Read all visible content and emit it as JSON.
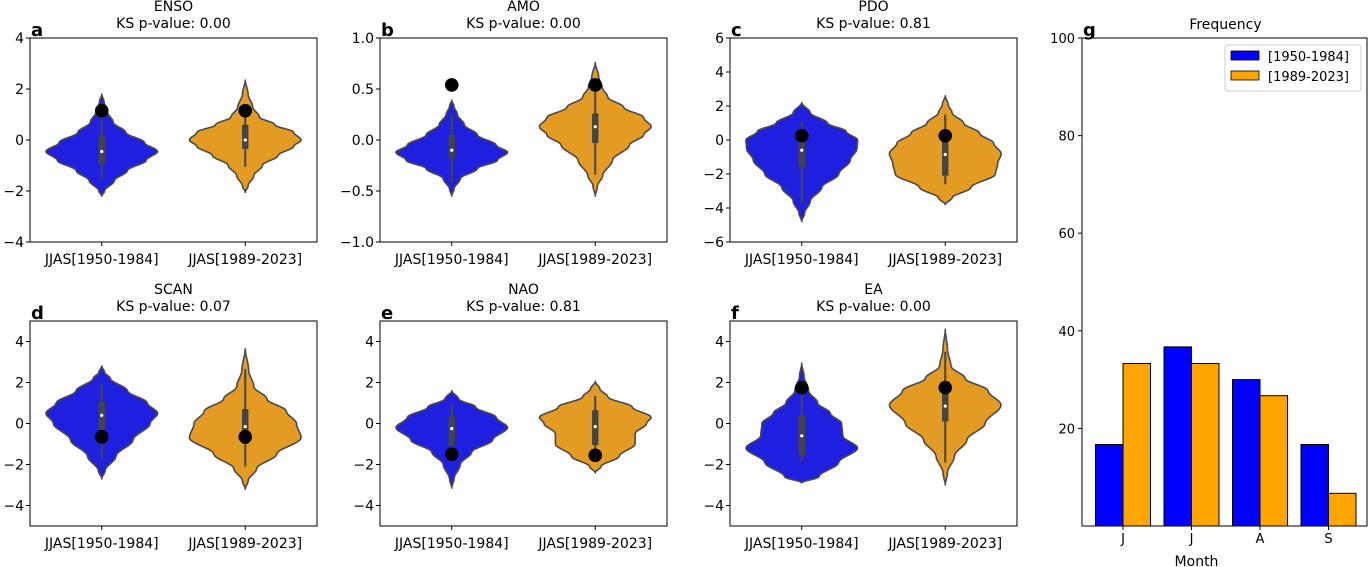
{
  "chart_data": [
    {
      "type": "violin",
      "panel": "a",
      "title": "ENSO",
      "subtitle": "KS p-value: 0.00",
      "ylim": [
        -4,
        4
      ],
      "yticks": [
        -4,
        -2,
        0,
        2,
        4
      ],
      "ytick_labels": [
        "−4",
        "−2",
        "0",
        "2",
        "4"
      ],
      "categories": [
        "JJAS[1950-1984]",
        "JJAS[1989-2023]"
      ],
      "series": [
        {
          "name": "JJAS[1950-1984]",
          "color": "#1f1fe0",
          "min": -2.2,
          "max": 1.8,
          "mode": -0.45,
          "median": -0.45,
          "q1": -0.95,
          "q3": 0.15,
          "whisker_low": -1.55,
          "whisker_high": 1.15,
          "marker": 1.15,
          "profile": [
            [
              -2.2,
              0
            ],
            [
              -2.0,
              0.05
            ],
            [
              -1.6,
              0.22
            ],
            [
              -1.2,
              0.45
            ],
            [
              -0.8,
              0.78
            ],
            [
              -0.45,
              0.98
            ],
            [
              -0.1,
              0.75
            ],
            [
              0.3,
              0.42
            ],
            [
              0.7,
              0.2
            ],
            [
              1.1,
              0.1
            ],
            [
              1.5,
              0.04
            ],
            [
              1.8,
              0
            ]
          ]
        },
        {
          "name": "JJAS[1989-2023]",
          "color": "#e39b23",
          "min": -2.05,
          "max": 2.35,
          "mode": 0.0,
          "median": 0.0,
          "q1": -0.35,
          "q3": 0.6,
          "whisker_low": -1.05,
          "whisker_high": 1.15,
          "marker": 1.15,
          "profile": [
            [
              -2.05,
              0
            ],
            [
              -1.8,
              0.05
            ],
            [
              -1.4,
              0.15
            ],
            [
              -1.0,
              0.3
            ],
            [
              -0.6,
              0.58
            ],
            [
              -0.25,
              0.85
            ],
            [
              0.0,
              0.98
            ],
            [
              0.3,
              0.85
            ],
            [
              0.6,
              0.52
            ],
            [
              0.9,
              0.25
            ],
            [
              1.3,
              0.13
            ],
            [
              1.8,
              0.05
            ],
            [
              2.35,
              0
            ]
          ]
        }
      ]
    },
    {
      "type": "violin",
      "panel": "b",
      "title": "AMO",
      "subtitle": "KS p-value: 0.00",
      "ylim": [
        -1.0,
        1.0
      ],
      "yticks": [
        -1.0,
        -0.5,
        0.0,
        0.5,
        1.0
      ],
      "ytick_labels": [
        "−1.0",
        "−0.5",
        "0.0",
        "0.5",
        "1.0"
      ],
      "categories": [
        "JJAS[1950-1984]",
        "JJAS[1989-2023]"
      ],
      "series": [
        {
          "name": "JJAS[1950-1984]",
          "color": "#1f1fe0",
          "min": -0.55,
          "max": 0.39,
          "mode": -0.12,
          "median": -0.1,
          "q1": -0.18,
          "q3": 0.05,
          "whisker_low": -0.42,
          "whisker_high": 0.25,
          "marker": 0.54,
          "profile": [
            [
              -0.55,
              0
            ],
            [
              -0.48,
              0.04
            ],
            [
              -0.38,
              0.15
            ],
            [
              -0.28,
              0.45
            ],
            [
              -0.2,
              0.8
            ],
            [
              -0.12,
              0.98
            ],
            [
              -0.05,
              0.78
            ],
            [
              0.05,
              0.45
            ],
            [
              0.15,
              0.22
            ],
            [
              0.25,
              0.1
            ],
            [
              0.33,
              0.04
            ],
            [
              0.39,
              0
            ]
          ]
        },
        {
          "name": "JJAS[1989-2023]",
          "color": "#e39b23",
          "min": -0.55,
          "max": 0.76,
          "mode": 0.13,
          "median": 0.13,
          "q1": -0.03,
          "q3": 0.26,
          "whisker_low": -0.34,
          "whisker_high": 0.52,
          "marker": 0.54,
          "profile": [
            [
              -0.55,
              0
            ],
            [
              -0.45,
              0.04
            ],
            [
              -0.35,
              0.13
            ],
            [
              -0.2,
              0.3
            ],
            [
              -0.05,
              0.6
            ],
            [
              0.05,
              0.85
            ],
            [
              0.13,
              0.98
            ],
            [
              0.22,
              0.85
            ],
            [
              0.32,
              0.5
            ],
            [
              0.42,
              0.22
            ],
            [
              0.52,
              0.12
            ],
            [
              0.62,
              0.06
            ],
            [
              0.76,
              0
            ]
          ]
        }
      ]
    },
    {
      "type": "violin",
      "panel": "c",
      "title": "PDO",
      "subtitle": "KS p-value: 0.81",
      "ylim": [
        -6,
        6
      ],
      "yticks": [
        -6,
        -4,
        -2,
        0,
        2,
        4,
        6
      ],
      "ytick_labels": [
        "−6",
        "−4",
        "−2",
        "0",
        "2",
        "4",
        "6"
      ],
      "categories": [
        "JJAS[1950-1984]",
        "JJAS[1989-2023]"
      ],
      "series": [
        {
          "name": "JJAS[1950-1984]",
          "color": "#1f1fe0",
          "min": -4.8,
          "max": 2.2,
          "mode": -0.1,
          "median": -0.6,
          "q1": -1.6,
          "q3": 0.0,
          "whisker_low": -3.7,
          "whisker_high": 1.1,
          "marker": 0.25,
          "profile": [
            [
              -4.8,
              0
            ],
            [
              -4.3,
              0.05
            ],
            [
              -3.6,
              0.15
            ],
            [
              -2.8,
              0.35
            ],
            [
              -2.0,
              0.65
            ],
            [
              -1.2,
              0.85
            ],
            [
              -0.5,
              0.97
            ],
            [
              0.0,
              0.98
            ],
            [
              0.5,
              0.78
            ],
            [
              1.0,
              0.45
            ],
            [
              1.6,
              0.15
            ],
            [
              2.2,
              0
            ]
          ]
        },
        {
          "name": "JJAS[1989-2023]",
          "color": "#e39b23",
          "min": -3.8,
          "max": 2.6,
          "mode": -0.8,
          "median": -0.85,
          "q1": -2.1,
          "q3": 0.2,
          "whisker_low": -2.6,
          "whisker_high": 1.5,
          "marker": 0.25,
          "profile": [
            [
              -3.8,
              0
            ],
            [
              -3.4,
              0.12
            ],
            [
              -2.8,
              0.45
            ],
            [
              -2.0,
              0.88
            ],
            [
              -1.4,
              0.92
            ],
            [
              -0.8,
              0.98
            ],
            [
              -0.2,
              0.85
            ],
            [
              0.4,
              0.6
            ],
            [
              1.0,
              0.32
            ],
            [
              1.6,
              0.12
            ],
            [
              2.1,
              0.05
            ],
            [
              2.6,
              0
            ]
          ]
        }
      ]
    },
    {
      "type": "violin",
      "panel": "d",
      "title": "SCAN",
      "subtitle": "KS p-value: 0.07",
      "ylim": [
        -5,
        5
      ],
      "yticks": [
        -4,
        -2,
        0,
        2,
        4
      ],
      "ytick_labels": [
        "−4",
        "−2",
        "0",
        "2",
        "4"
      ],
      "categories": [
        "JJAS[1950-1984]",
        "JJAS[1989-2023]"
      ],
      "series": [
        {
          "name": "JJAS[1950-1984]",
          "color": "#1f1fe0",
          "min": -2.7,
          "max": 2.8,
          "mode": 0.5,
          "median": 0.4,
          "q1": -0.3,
          "q3": 1.05,
          "whisker_low": -1.8,
          "whisker_high": 1.9,
          "marker": -0.65,
          "profile": [
            [
              -2.7,
              0
            ],
            [
              -2.3,
              0.06
            ],
            [
              -1.6,
              0.25
            ],
            [
              -0.8,
              0.55
            ],
            [
              0.0,
              0.85
            ],
            [
              0.5,
              0.98
            ],
            [
              1.0,
              0.8
            ],
            [
              1.6,
              0.45
            ],
            [
              2.2,
              0.15
            ],
            [
              2.5,
              0.05
            ],
            [
              2.8,
              0
            ]
          ]
        },
        {
          "name": "JJAS[1989-2023]",
          "color": "#e39b23",
          "min": -3.2,
          "max": 3.65,
          "mode": -0.6,
          "median": -0.15,
          "q1": -1.0,
          "q3": 0.7,
          "whisker_low": -2.1,
          "whisker_high": 2.65,
          "marker": -0.65,
          "profile": [
            [
              -3.2,
              0
            ],
            [
              -2.8,
              0.05
            ],
            [
              -2.2,
              0.2
            ],
            [
              -1.5,
              0.55
            ],
            [
              -0.7,
              0.98
            ],
            [
              0.0,
              0.9
            ],
            [
              0.6,
              0.72
            ],
            [
              1.2,
              0.38
            ],
            [
              1.8,
              0.15
            ],
            [
              2.6,
              0.06
            ],
            [
              3.65,
              0
            ]
          ]
        }
      ]
    },
    {
      "type": "violin",
      "panel": "e",
      "title": "NAO",
      "subtitle": "KS p-value: 0.81",
      "ylim": [
        -5,
        5
      ],
      "yticks": [
        -4,
        -2,
        0,
        2,
        4
      ],
      "ytick_labels": [
        "−4",
        "−2",
        "0",
        "2",
        "4"
      ],
      "categories": [
        "JJAS[1950-1984]",
        "JJAS[1989-2023]"
      ],
      "series": [
        {
          "name": "JJAS[1950-1984]",
          "color": "#1f1fe0",
          "min": -3.15,
          "max": 1.6,
          "mode": -0.2,
          "median": -0.25,
          "q1": -1.1,
          "q3": 0.35,
          "whisker_low": -1.5,
          "whisker_high": 0.95,
          "marker": -1.5,
          "profile": [
            [
              -3.15,
              0
            ],
            [
              -2.7,
              0.04
            ],
            [
              -2.0,
              0.15
            ],
            [
              -1.4,
              0.35
            ],
            [
              -0.8,
              0.72
            ],
            [
              -0.2,
              0.98
            ],
            [
              0.3,
              0.78
            ],
            [
              0.8,
              0.42
            ],
            [
              1.2,
              0.12
            ],
            [
              1.6,
              0
            ]
          ]
        },
        {
          "name": "JJAS[1989-2023]",
          "color": "#e39b23",
          "min": -2.4,
          "max": 2.05,
          "mode": 0.3,
          "median": -0.15,
          "q1": -1.05,
          "q3": 0.65,
          "whisker_low": -1.55,
          "whisker_high": 1.35,
          "marker": -1.55,
          "profile": [
            [
              -2.4,
              0
            ],
            [
              -2.1,
              0.1
            ],
            [
              -1.6,
              0.42
            ],
            [
              -1.0,
              0.7
            ],
            [
              -0.5,
              0.7
            ],
            [
              0.0,
              0.9
            ],
            [
              0.3,
              0.98
            ],
            [
              0.8,
              0.65
            ],
            [
              1.3,
              0.22
            ],
            [
              1.7,
              0.08
            ],
            [
              2.05,
              0
            ]
          ]
        }
      ]
    },
    {
      "type": "violin",
      "panel": "f",
      "title": "EA",
      "subtitle": "KS p-value: 0.00",
      "ylim": [
        -5,
        5
      ],
      "yticks": [
        -4,
        -2,
        0,
        2,
        4
      ],
      "ytick_labels": [
        "−4",
        "−2",
        "0",
        "2",
        "4"
      ],
      "categories": [
        "JJAS[1950-1984]",
        "JJAS[1989-2023]"
      ],
      "series": [
        {
          "name": "JJAS[1950-1984]",
          "color": "#1f1fe0",
          "min": -2.9,
          "max": 2.95,
          "mode": -1.2,
          "median": -0.6,
          "q1": -1.55,
          "q3": 0.4,
          "whisker_low": -1.85,
          "whisker_high": 1.8,
          "marker": 1.75,
          "profile": [
            [
              -2.9,
              0
            ],
            [
              -2.6,
              0.3
            ],
            [
              -1.9,
              0.65
            ],
            [
              -1.2,
              0.98
            ],
            [
              -0.6,
              0.72
            ],
            [
              0.0,
              0.7
            ],
            [
              0.5,
              0.5
            ],
            [
              1.0,
              0.28
            ],
            [
              1.6,
              0.12
            ],
            [
              2.3,
              0.04
            ],
            [
              2.95,
              0
            ]
          ]
        },
        {
          "name": "JJAS[1989-2023]",
          "color": "#e39b23",
          "min": -3.0,
          "max": 4.6,
          "mode": 0.9,
          "median": 0.85,
          "q1": 0.1,
          "q3": 1.45,
          "whisker_low": -1.9,
          "whisker_high": 3.5,
          "marker": 1.75,
          "profile": [
            [
              -3.0,
              0
            ],
            [
              -2.4,
              0.04
            ],
            [
              -1.6,
              0.16
            ],
            [
              -0.8,
              0.38
            ],
            [
              0.0,
              0.7
            ],
            [
              0.9,
              0.98
            ],
            [
              1.6,
              0.75
            ],
            [
              2.2,
              0.35
            ],
            [
              2.8,
              0.1
            ],
            [
              3.6,
              0.04
            ],
            [
              4.6,
              0
            ]
          ]
        }
      ]
    },
    {
      "type": "bar",
      "panel": "g",
      "title": "Frequency",
      "xlabel": "Month",
      "ylabel": "",
      "ylim": [
        0,
        100
      ],
      "yticks": [
        20,
        40,
        60,
        80,
        100
      ],
      "categories": [
        "J",
        "J",
        "A",
        "S"
      ],
      "legend_position": "top-right",
      "series": [
        {
          "name": "[1950-1984]",
          "color": "#0000ff",
          "values": [
            16.7,
            36.7,
            30.0,
            16.7
          ]
        },
        {
          "name": "[1989-2023]",
          "color": "#ffa500",
          "values": [
            33.3,
            33.3,
            26.7,
            6.7
          ]
        }
      ]
    }
  ]
}
